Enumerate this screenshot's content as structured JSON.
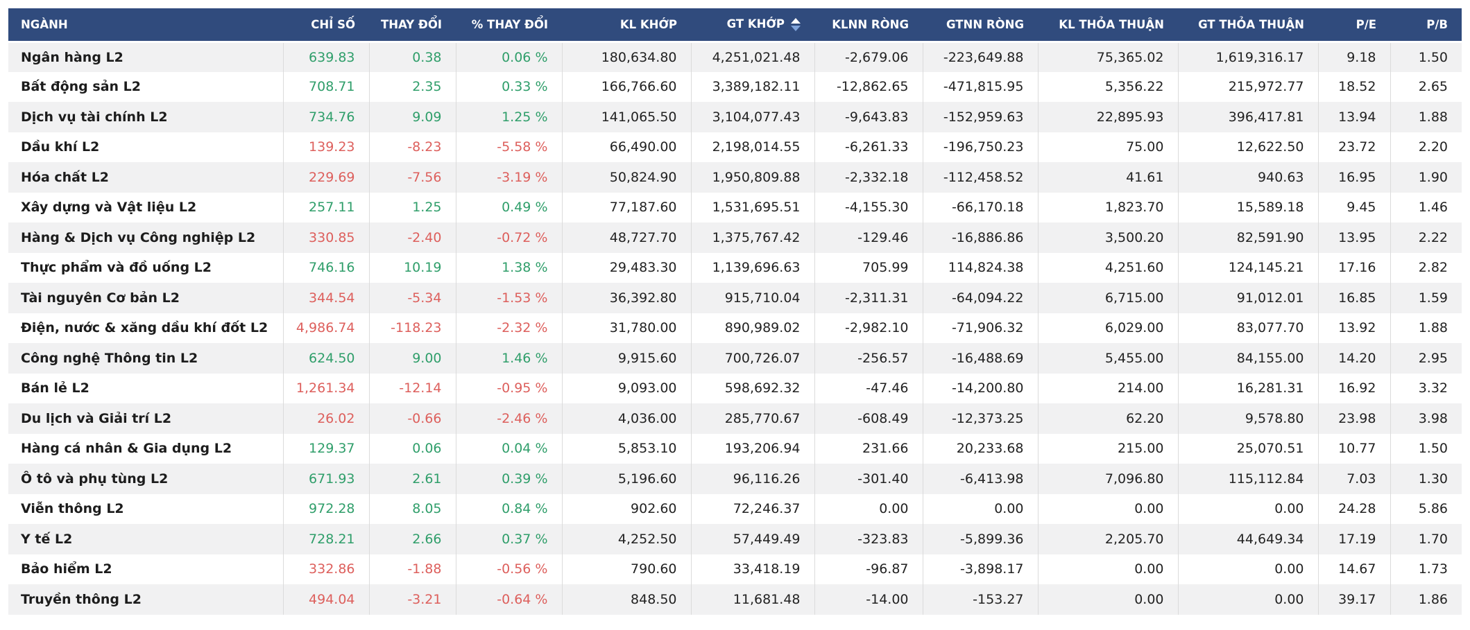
{
  "table": {
    "columns": [
      {
        "key": "nganh",
        "label": "NGÀNH"
      },
      {
        "key": "chi_so",
        "label": "CHỈ SỐ"
      },
      {
        "key": "thay_doi",
        "label": "THAY ĐỔI"
      },
      {
        "key": "pct_thay_doi",
        "label": "% THAY ĐỔI"
      },
      {
        "key": "kl_khop",
        "label": "KL KHỚP"
      },
      {
        "key": "gt_khop",
        "label": "GT KHỚP",
        "sort_icon": true
      },
      {
        "key": "klnn_rong",
        "label": "KLNN RÒNG"
      },
      {
        "key": "gtnn_rong",
        "label": "GTNN RÒNG"
      },
      {
        "key": "kl_thoa_thuan",
        "label": "KL THỎA THUẬN"
      },
      {
        "key": "gt_thoa_thuan",
        "label": "GT THỎA THUẬN"
      },
      {
        "key": "pe",
        "label": "P/E"
      },
      {
        "key": "pb",
        "label": "P/B"
      }
    ],
    "trend_columns": [
      "chi_so",
      "thay_doi",
      "pct_thay_doi"
    ],
    "rows": [
      {
        "nganh": "Ngân hàng L2",
        "chi_so": "639.83",
        "thay_doi": "0.38",
        "pct_thay_doi": "0.06 %",
        "trend": "up",
        "kl_khop": "180,634.80",
        "gt_khop": "4,251,021.48",
        "klnn_rong": "-2,679.06",
        "gtnn_rong": "-223,649.88",
        "kl_thoa_thuan": "75,365.02",
        "gt_thoa_thuan": "1,619,316.17",
        "pe": "9.18",
        "pb": "1.50"
      },
      {
        "nganh": "Bất động sản L2",
        "chi_so": "708.71",
        "thay_doi": "2.35",
        "pct_thay_doi": "0.33 %",
        "trend": "up",
        "kl_khop": "166,766.60",
        "gt_khop": "3,389,182.11",
        "klnn_rong": "-12,862.65",
        "gtnn_rong": "-471,815.95",
        "kl_thoa_thuan": "5,356.22",
        "gt_thoa_thuan": "215,972.77",
        "pe": "18.52",
        "pb": "2.65"
      },
      {
        "nganh": "Dịch vụ tài chính L2",
        "chi_so": "734.76",
        "thay_doi": "9.09",
        "pct_thay_doi": "1.25 %",
        "trend": "up",
        "kl_khop": "141,065.50",
        "gt_khop": "3,104,077.43",
        "klnn_rong": "-9,643.83",
        "gtnn_rong": "-152,959.63",
        "kl_thoa_thuan": "22,895.93",
        "gt_thoa_thuan": "396,417.81",
        "pe": "13.94",
        "pb": "1.88"
      },
      {
        "nganh": "Dầu khí L2",
        "chi_so": "139.23",
        "thay_doi": "-8.23",
        "pct_thay_doi": "-5.58 %",
        "trend": "down",
        "kl_khop": "66,490.00",
        "gt_khop": "2,198,014.55",
        "klnn_rong": "-6,261.33",
        "gtnn_rong": "-196,750.23",
        "kl_thoa_thuan": "75.00",
        "gt_thoa_thuan": "12,622.50",
        "pe": "23.72",
        "pb": "2.20"
      },
      {
        "nganh": "Hóa chất L2",
        "chi_so": "229.69",
        "thay_doi": "-7.56",
        "pct_thay_doi": "-3.19 %",
        "trend": "down",
        "kl_khop": "50,824.90",
        "gt_khop": "1,950,809.88",
        "klnn_rong": "-2,332.18",
        "gtnn_rong": "-112,458.52",
        "kl_thoa_thuan": "41.61",
        "gt_thoa_thuan": "940.63",
        "pe": "16.95",
        "pb": "1.90"
      },
      {
        "nganh": "Xây dựng và Vật liệu L2",
        "chi_so": "257.11",
        "thay_doi": "1.25",
        "pct_thay_doi": "0.49 %",
        "trend": "up",
        "kl_khop": "77,187.60",
        "gt_khop": "1,531,695.51",
        "klnn_rong": "-4,155.30",
        "gtnn_rong": "-66,170.18",
        "kl_thoa_thuan": "1,823.70",
        "gt_thoa_thuan": "15,589.18",
        "pe": "9.45",
        "pb": "1.46"
      },
      {
        "nganh": "Hàng & Dịch vụ Công nghiệp L2",
        "chi_so": "330.85",
        "thay_doi": "-2.40",
        "pct_thay_doi": "-0.72 %",
        "trend": "down",
        "kl_khop": "48,727.70",
        "gt_khop": "1,375,767.42",
        "klnn_rong": "-129.46",
        "gtnn_rong": "-16,886.86",
        "kl_thoa_thuan": "3,500.20",
        "gt_thoa_thuan": "82,591.90",
        "pe": "13.95",
        "pb": "2.22"
      },
      {
        "nganh": "Thực phẩm và đồ uống L2",
        "chi_so": "746.16",
        "thay_doi": "10.19",
        "pct_thay_doi": "1.38 %",
        "trend": "up",
        "kl_khop": "29,483.30",
        "gt_khop": "1,139,696.63",
        "klnn_rong": "705.99",
        "gtnn_rong": "114,824.38",
        "kl_thoa_thuan": "4,251.60",
        "gt_thoa_thuan": "124,145.21",
        "pe": "17.16",
        "pb": "2.82"
      },
      {
        "nganh": "Tài nguyên Cơ bản L2",
        "chi_so": "344.54",
        "thay_doi": "-5.34",
        "pct_thay_doi": "-1.53 %",
        "trend": "down",
        "kl_khop": "36,392.80",
        "gt_khop": "915,710.04",
        "klnn_rong": "-2,311.31",
        "gtnn_rong": "-64,094.22",
        "kl_thoa_thuan": "6,715.00",
        "gt_thoa_thuan": "91,012.01",
        "pe": "16.85",
        "pb": "1.59"
      },
      {
        "nganh": "Điện, nước & xăng dầu khí đốt L2",
        "chi_so": "4,986.74",
        "thay_doi": "-118.23",
        "pct_thay_doi": "-2.32 %",
        "trend": "down",
        "kl_khop": "31,780.00",
        "gt_khop": "890,989.02",
        "klnn_rong": "-2,982.10",
        "gtnn_rong": "-71,906.32",
        "kl_thoa_thuan": "6,029.00",
        "gt_thoa_thuan": "83,077.70",
        "pe": "13.92",
        "pb": "1.88"
      },
      {
        "nganh": "Công nghệ Thông tin L2",
        "chi_so": "624.50",
        "thay_doi": "9.00",
        "pct_thay_doi": "1.46 %",
        "trend": "up",
        "kl_khop": "9,915.60",
        "gt_khop": "700,726.07",
        "klnn_rong": "-256.57",
        "gtnn_rong": "-16,488.69",
        "kl_thoa_thuan": "5,455.00",
        "gt_thoa_thuan": "84,155.00",
        "pe": "14.20",
        "pb": "2.95"
      },
      {
        "nganh": "Bán lẻ L2",
        "chi_so": "1,261.34",
        "thay_doi": "-12.14",
        "pct_thay_doi": "-0.95 %",
        "trend": "down",
        "kl_khop": "9,093.00",
        "gt_khop": "598,692.32",
        "klnn_rong": "-47.46",
        "gtnn_rong": "-14,200.80",
        "kl_thoa_thuan": "214.00",
        "gt_thoa_thuan": "16,281.31",
        "pe": "16.92",
        "pb": "3.32"
      },
      {
        "nganh": "Du lịch và Giải trí L2",
        "chi_so": "26.02",
        "thay_doi": "-0.66",
        "pct_thay_doi": "-2.46 %",
        "trend": "down",
        "kl_khop": "4,036.00",
        "gt_khop": "285,770.67",
        "klnn_rong": "-608.49",
        "gtnn_rong": "-12,373.25",
        "kl_thoa_thuan": "62.20",
        "gt_thoa_thuan": "9,578.80",
        "pe": "23.98",
        "pb": "3.98"
      },
      {
        "nganh": "Hàng cá nhân & Gia dụng L2",
        "chi_so": "129.37",
        "thay_doi": "0.06",
        "pct_thay_doi": "0.04 %",
        "trend": "up",
        "kl_khop": "5,853.10",
        "gt_khop": "193,206.94",
        "klnn_rong": "231.66",
        "gtnn_rong": "20,233.68",
        "kl_thoa_thuan": "215.00",
        "gt_thoa_thuan": "25,070.51",
        "pe": "10.77",
        "pb": "1.50"
      },
      {
        "nganh": "Ô tô và phụ tùng L2",
        "chi_so": "671.93",
        "thay_doi": "2.61",
        "pct_thay_doi": "0.39 %",
        "trend": "up",
        "kl_khop": "5,196.60",
        "gt_khop": "96,116.26",
        "klnn_rong": "-301.40",
        "gtnn_rong": "-6,413.98",
        "kl_thoa_thuan": "7,096.80",
        "gt_thoa_thuan": "115,112.84",
        "pe": "7.03",
        "pb": "1.30"
      },
      {
        "nganh": "Viễn thông L2",
        "chi_so": "972.28",
        "thay_doi": "8.05",
        "pct_thay_doi": "0.84 %",
        "trend": "up",
        "kl_khop": "902.60",
        "gt_khop": "72,246.37",
        "klnn_rong": "0.00",
        "gtnn_rong": "0.00",
        "kl_thoa_thuan": "0.00",
        "gt_thoa_thuan": "0.00",
        "pe": "24.28",
        "pb": "5.86"
      },
      {
        "nganh": "Y tế L2",
        "chi_so": "728.21",
        "thay_doi": "2.66",
        "pct_thay_doi": "0.37 %",
        "trend": "up",
        "kl_khop": "4,252.50",
        "gt_khop": "57,449.49",
        "klnn_rong": "-323.83",
        "gtnn_rong": "-5,899.36",
        "kl_thoa_thuan": "2,205.70",
        "gt_thoa_thuan": "44,649.34",
        "pe": "17.19",
        "pb": "1.70"
      },
      {
        "nganh": "Bảo hiểm L2",
        "chi_so": "332.86",
        "thay_doi": "-1.88",
        "pct_thay_doi": "-0.56 %",
        "trend": "down",
        "kl_khop": "790.60",
        "gt_khop": "33,418.19",
        "klnn_rong": "-96.87",
        "gtnn_rong": "-3,898.17",
        "kl_thoa_thuan": "0.00",
        "gt_thoa_thuan": "0.00",
        "pe": "14.67",
        "pb": "1.73"
      },
      {
        "nganh": "Truyền thông L2",
        "chi_so": "494.04",
        "thay_doi": "-3.21",
        "pct_thay_doi": "-0.64 %",
        "trend": "down",
        "kl_khop": "848.50",
        "gt_khop": "11,681.48",
        "klnn_rong": "-14.00",
        "gtnn_rong": "-153.27",
        "kl_thoa_thuan": "0.00",
        "gt_thoa_thuan": "0.00",
        "pe": "39.17",
        "pb": "1.86"
      }
    ]
  },
  "sort": {
    "active_column": "gt_khop"
  },
  "colors": {
    "header_bg": "#304b7d",
    "header_text": "#ffffff",
    "positive": "#2f9e6a",
    "negative": "#dd5f5c",
    "number_text": "#222222",
    "name_text": "#1c1c1c",
    "row_stripe": "#f1f1f2",
    "column_separator": "#dbdbdb",
    "sort_arrow_up": "#ffffff",
    "sort_arrow_down": "#7fa3da"
  }
}
